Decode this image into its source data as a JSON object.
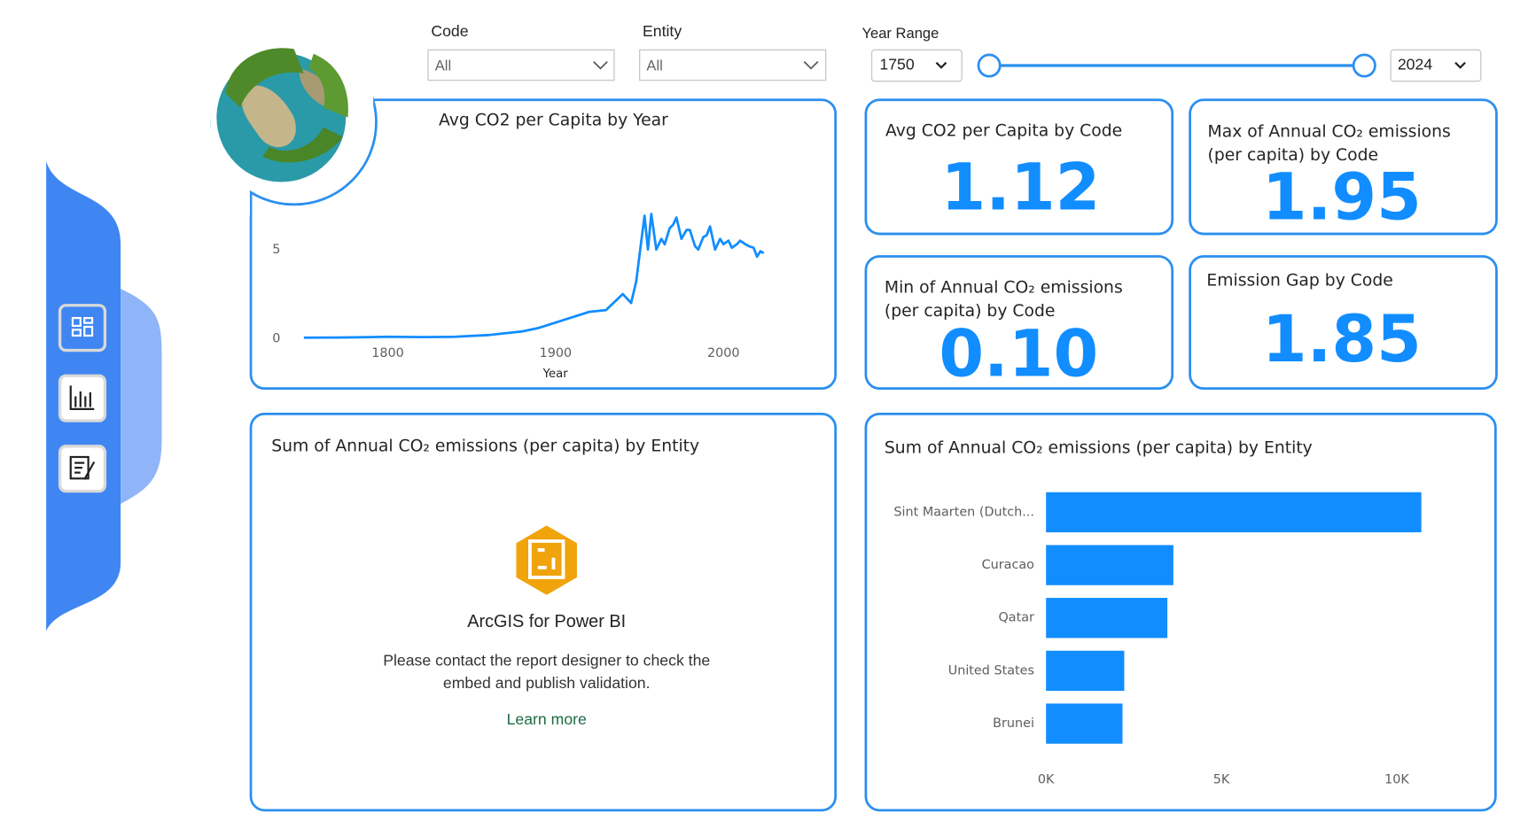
{
  "filters": {
    "code_label": "Code",
    "code_value": "All",
    "entity_label": "Entity",
    "entity_value": "All",
    "year_range_label": "Year Range",
    "year_start": "1750",
    "year_end": "2024"
  },
  "cards": [
    {
      "title": [
        "Avg CO2 per Capita by Code"
      ],
      "value": "1.12"
    },
    {
      "title": [
        "Max of Annual CO₂ emissions",
        "(per capita) by Code"
      ],
      "value": "1.95"
    },
    {
      "title": [
        "Min of Annual CO₂ emissions",
        "(per capita) by Code"
      ],
      "value": "0.10"
    },
    {
      "title": [
        "Emission Gap by Code"
      ],
      "value": "1.85"
    }
  ],
  "map": {
    "title": "Sum of Annual CO₂ emissions (per capita) by Entity",
    "product": "ArcGIS for Power BI",
    "message": [
      "Please contact the report designer to check the",
      "embed and publish validation."
    ],
    "link": "Learn more"
  },
  "chart_data": [
    {
      "type": "line",
      "title": "Avg CO2 per Capita by Year",
      "x_label": "Year",
      "x": [
        1750,
        1770,
        1790,
        1800,
        1820,
        1840,
        1850,
        1860,
        1870,
        1880,
        1890,
        1900,
        1910,
        1920,
        1930,
        1940,
        1945,
        1948,
        1950,
        1953,
        1955,
        1957,
        1960,
        1963,
        1965,
        1968,
        1970,
        1972,
        1975,
        1978,
        1980,
        1983,
        1985,
        1988,
        1990,
        1992,
        1995,
        1998,
        2000,
        2003,
        2005,
        2008,
        2010,
        2013,
        2015,
        2018,
        2020,
        2022,
        2024
      ],
      "series": [
        {
          "color": "#118dff",
          "values": [
            0.05,
            0.06,
            0.08,
            0.1,
            0.08,
            0.1,
            0.15,
            0.2,
            0.3,
            0.4,
            0.6,
            0.9,
            1.2,
            1.5,
            1.6,
            2.5,
            2.0,
            3.2,
            4.7,
            6.9,
            5.0,
            7.0,
            5.0,
            5.6,
            5.3,
            6.2,
            6.4,
            6.8,
            5.6,
            6.1,
            6.1,
            5.2,
            5.0,
            5.7,
            5.8,
            6.3,
            5.0,
            5.6,
            5.3,
            5.5,
            5.1,
            5.3,
            5.5,
            5.3,
            5.2,
            5.1,
            4.6,
            4.9,
            4.8
          ]
        }
      ],
      "xlim": [
        1740,
        2030
      ],
      "ylim": [
        0,
        7.2
      ],
      "xticks": [
        1800,
        1900,
        2000
      ],
      "yticks": [
        0,
        5
      ]
    },
    {
      "type": "bar",
      "orientation": "horizontal",
      "title": "Sum of Annual CO₂ emissions (per capita) by Entity",
      "categories": [
        "Sint Maarten (Dutch...",
        "Curacao",
        "Qatar",
        "United States",
        "Brunei"
      ],
      "values": [
        10700,
        3630,
        3460,
        2230,
        2180
      ],
      "color": "#118dff",
      "xlim": [
        0,
        11000
      ],
      "xticks": [
        {
          "value": 0,
          "label": "0K"
        },
        {
          "value": 5000,
          "label": "5K"
        },
        {
          "value": 10000,
          "label": "10K"
        }
      ]
    }
  ]
}
